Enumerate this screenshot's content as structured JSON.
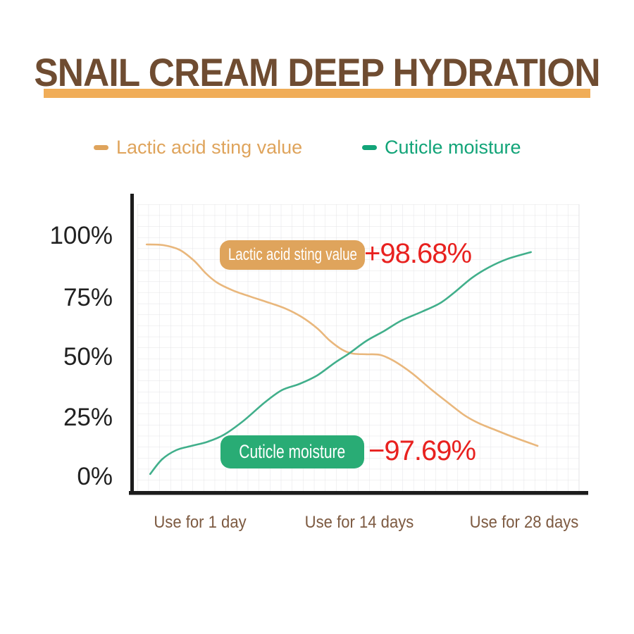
{
  "header": {
    "title": "SNAIL CREAM DEEP HYDRATION",
    "title_color": "#6f4c31",
    "underline_color": "#f0ad58"
  },
  "legend": {
    "items": [
      {
        "label": "Lactic acid sting value",
        "color": "#dfa45c"
      },
      {
        "label": "Cuticle moisture",
        "color": "#12a478"
      }
    ]
  },
  "axis": {
    "y_label_color": "#212121",
    "x_label_color": "#7d5a41"
  },
  "chart_data": {
    "type": "line",
    "title": "SNAIL CREAM DEEP HYDRATION",
    "x_tick_labels": [
      "Use for 1 day",
      "Use for 14 days",
      "Use for 28 days"
    ],
    "y_tick_labels": [
      "100%",
      "75%",
      "50%",
      "25%",
      "0%"
    ],
    "ylim": [
      0,
      100
    ],
    "grid": true,
    "legend_position": "top",
    "series": [
      {
        "name": "Lactic acid sting value",
        "color": "#e9b77c",
        "trend": "decreasing",
        "points": [
          [
            0.021,
            96.5
          ],
          [
            0.059,
            96.2
          ],
          [
            0.096,
            94.2
          ],
          [
            0.128,
            89.8
          ],
          [
            0.155,
            84.5
          ],
          [
            0.18,
            80.7
          ],
          [
            0.215,
            77.5
          ],
          [
            0.255,
            74.9
          ],
          [
            0.295,
            72.5
          ],
          [
            0.335,
            69.9
          ],
          [
            0.372,
            66.4
          ],
          [
            0.407,
            61.7
          ],
          [
            0.435,
            56.7
          ],
          [
            0.463,
            52.9
          ],
          [
            0.487,
            51.2
          ],
          [
            0.518,
            50.9
          ],
          [
            0.55,
            50.6
          ],
          [
            0.582,
            48.0
          ],
          [
            0.622,
            43.0
          ],
          [
            0.662,
            36.8
          ],
          [
            0.702,
            31.0
          ],
          [
            0.742,
            25.4
          ],
          [
            0.774,
            22.2
          ],
          [
            0.813,
            19.3
          ],
          [
            0.853,
            16.4
          ],
          [
            0.906,
            12.9
          ]
        ]
      },
      {
        "name": "Cuticle moisture",
        "color": "#41af8b",
        "trend": "increasing",
        "points": [
          [
            0.029,
            1.2
          ],
          [
            0.056,
            7.3
          ],
          [
            0.088,
            11.1
          ],
          [
            0.123,
            12.9
          ],
          [
            0.159,
            14.6
          ],
          [
            0.196,
            17.5
          ],
          [
            0.239,
            23.1
          ],
          [
            0.287,
            30.7
          ],
          [
            0.327,
            36.0
          ],
          [
            0.367,
            38.6
          ],
          [
            0.407,
            42.1
          ],
          [
            0.447,
            47.4
          ],
          [
            0.479,
            51.2
          ],
          [
            0.518,
            56.4
          ],
          [
            0.558,
            60.5
          ],
          [
            0.598,
            64.9
          ],
          [
            0.646,
            68.7
          ],
          [
            0.686,
            72.2
          ],
          [
            0.718,
            76.6
          ],
          [
            0.758,
            82.7
          ],
          [
            0.797,
            87.1
          ],
          [
            0.837,
            90.4
          ],
          [
            0.891,
            93.3
          ]
        ]
      }
    ],
    "annotations": [
      {
        "series": "Lactic acid sting value",
        "badge_label": "Lactic acid sting value",
        "badge_color": "#dfa45c",
        "value": "+98.68%",
        "value_color": "#e8211f"
      },
      {
        "series": "Cuticle moisture",
        "badge_label": "Cuticle moisture",
        "badge_color": "#29ac75",
        "value": "−97.69%",
        "value_color": "#e8211f"
      }
    ]
  }
}
